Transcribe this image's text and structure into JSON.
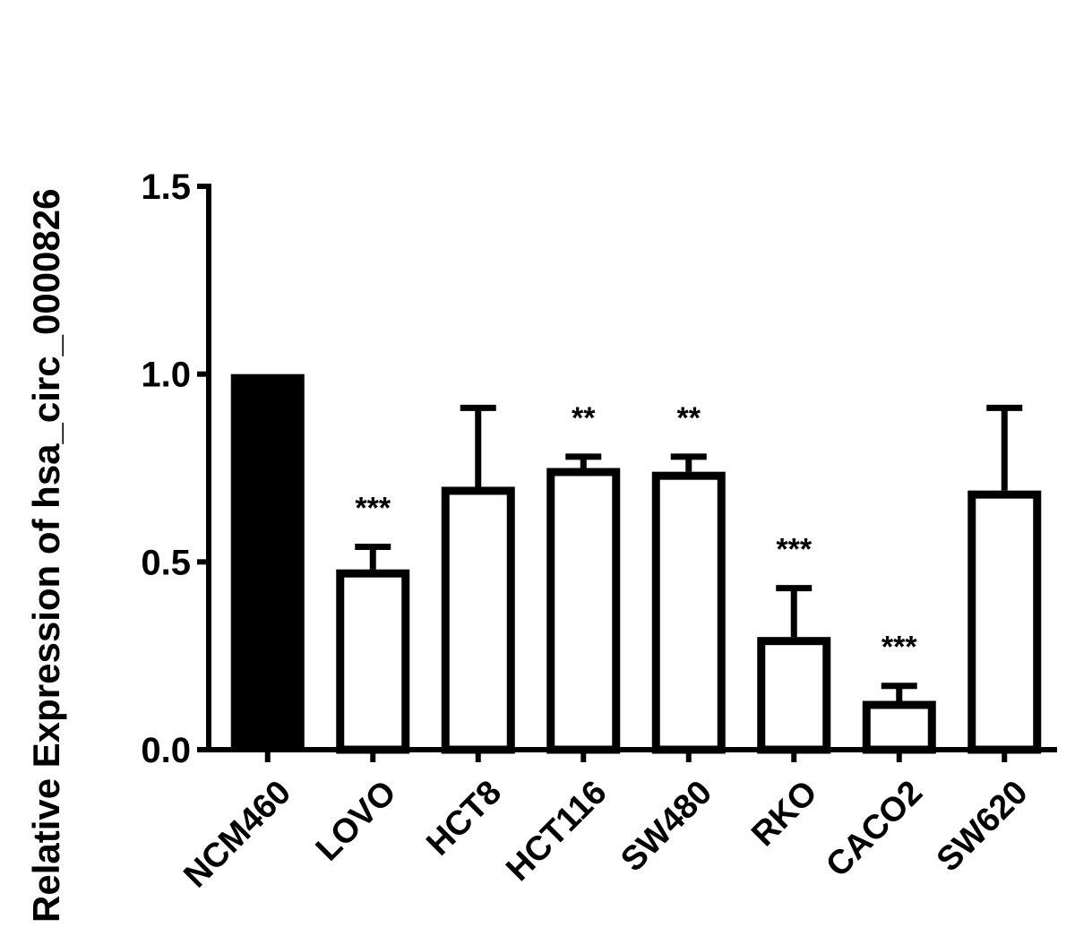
{
  "chart_data": {
    "type": "bar",
    "title": "",
    "xlabel": "",
    "ylabel": "Relative Expression of hsa_circ_0000826",
    "ylim": [
      0,
      1.5
    ],
    "yticks": [
      0.0,
      0.5,
      1.0,
      1.5
    ],
    "ytick_labels": [
      "0.0",
      "0.5",
      "1.0",
      "1.5"
    ],
    "categories": [
      "NCM460",
      "LOVO",
      "HCT8",
      "HCT116",
      "SW480",
      "RKO",
      "CACO2",
      "SW620"
    ],
    "values": [
      1.0,
      0.48,
      0.7,
      0.75,
      0.74,
      0.3,
      0.13,
      0.69
    ],
    "errors": [
      0,
      0.06,
      0.21,
      0.03,
      0.04,
      0.13,
      0.04,
      0.22
    ],
    "significance": [
      "",
      "***",
      "",
      "**",
      "**",
      "***",
      "***",
      ""
    ],
    "bar_fill": [
      "#000000",
      "#ffffff",
      "#ffffff",
      "#ffffff",
      "#ffffff",
      "#ffffff",
      "#ffffff",
      "#ffffff"
    ],
    "bar_stroke": "#000000",
    "grid": false,
    "legend": "none"
  }
}
